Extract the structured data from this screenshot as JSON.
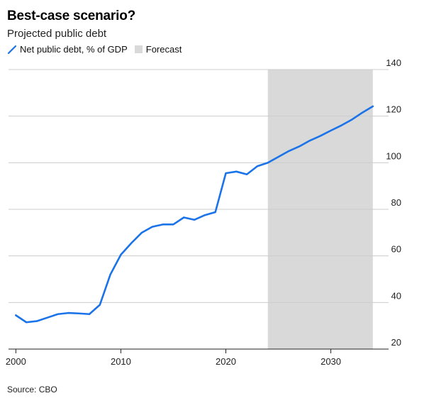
{
  "header": {
    "title": "Best-case scenario?",
    "subtitle": "Projected public debt"
  },
  "legend": {
    "series_label": "Net public debt, % of GDP",
    "forecast_label": "Forecast"
  },
  "footer": {
    "source": "Source: CBO"
  },
  "colors": {
    "line": "#1a73e8",
    "forecast_band": "#d9d9d9",
    "grid": "#cccccc",
    "axis": "#222222"
  },
  "chart_data": {
    "type": "line",
    "title": "Best-case scenario?",
    "subtitle": "Projected public debt",
    "xlabel": "",
    "ylabel": "",
    "xlim": [
      1999.3,
      2035.5
    ],
    "ylim": [
      20,
      140
    ],
    "x_ticks": [
      2000,
      2010,
      2020,
      2030
    ],
    "y_ticks": [
      20,
      40,
      60,
      80,
      100,
      120,
      140
    ],
    "grid": "horizontal",
    "y_axis_position": "right",
    "legend_position": "top-left",
    "forecast_band": {
      "label": "Forecast",
      "start": 2024,
      "end": 2034
    },
    "series": [
      {
        "name": "Net public debt, % of GDP",
        "x": [
          2000,
          2001,
          2002,
          2003,
          2004,
          2005,
          2006,
          2007,
          2008,
          2009,
          2010,
          2011,
          2012,
          2013,
          2014,
          2015,
          2016,
          2017,
          2018,
          2019,
          2020,
          2021,
          2022,
          2023,
          2024,
          2025,
          2026,
          2027,
          2028,
          2029,
          2030,
          2031,
          2032,
          2033,
          2034
        ],
        "y": [
          34.5,
          31.5,
          32,
          33.5,
          35,
          35.5,
          35.3,
          35,
          39,
          52,
          60.5,
          65.5,
          70,
          72.5,
          73.5,
          73.5,
          76.5,
          75.5,
          77.5,
          78.8,
          95.5,
          96.2,
          95,
          98.5,
          100,
          102.5,
          105,
          107,
          109.5,
          111.5,
          113.8,
          116,
          118.5,
          121.5,
          124.2
        ]
      }
    ]
  }
}
